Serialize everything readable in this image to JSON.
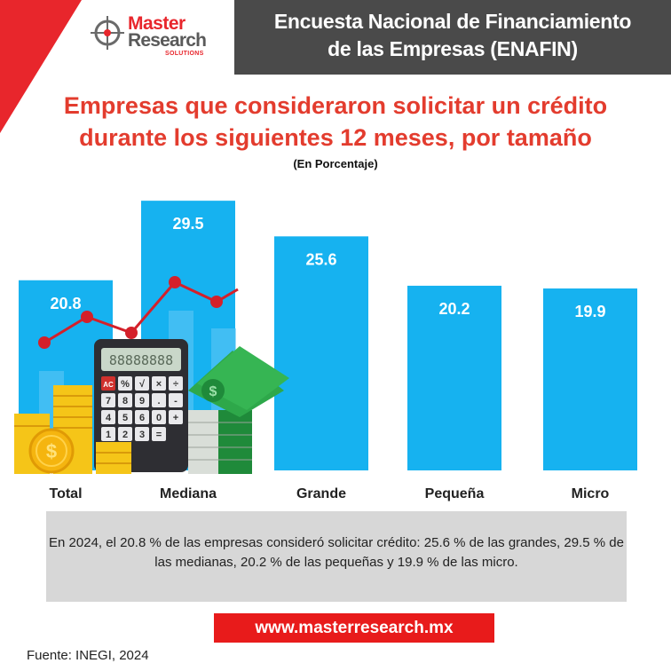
{
  "header": {
    "logo_line1": "Master",
    "logo_line2": "Research",
    "logo_line3": "SOLUTIONS",
    "title_line1": "Encuesta Nacional de Financiamiento",
    "title_line2": "de las Empresas (ENAFIN)"
  },
  "chart_data": {
    "type": "bar",
    "title_line1": "Empresas que consideraron solicitar un crédito",
    "title_line2": "durante los siguientes 12 meses,  por tamaño",
    "subtitle": "(En Porcentaje)",
    "categories": [
      "Total",
      "Mediana",
      "Grande",
      "Pequeña",
      "Micro"
    ],
    "values": [
      20.8,
      29.5,
      25.6,
      20.2,
      19.9
    ],
    "value_labels": [
      "20.8",
      "29.5",
      "25.6",
      "20.2",
      "19.9"
    ],
    "bar_color": "#16b2f0",
    "ylim": [
      0,
      31
    ],
    "grid": false,
    "legend": "none"
  },
  "summary": {
    "text": "En 2024, el 20.8 % de las empresas consideró solicitar crédito: 25.6 % de las grandes, 29.5 % de las medianas, 20.2 % de las pequeñas y 19.9 % de las micro."
  },
  "footer": {
    "url": "www.masterresearch.mx",
    "source": "Fuente: INEGI, 2024"
  },
  "illustration": {
    "calculator_keys": [
      "AC",
      "%",
      "√",
      "×",
      "÷",
      "7",
      "8",
      "9",
      ".",
      "-",
      "4",
      "5",
      "6",
      "0",
      "+",
      "1",
      "2",
      "3",
      "=",
      ""
    ],
    "icons": [
      "calculator-icon",
      "coin-stack-icon",
      "dollar-coin-icon",
      "banknote-stack-icon",
      "line-chart-icon"
    ]
  }
}
